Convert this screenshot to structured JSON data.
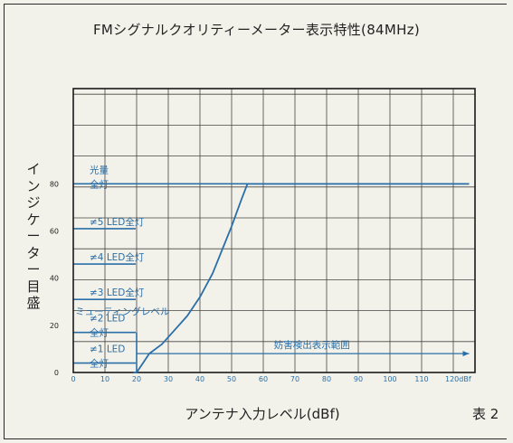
{
  "title": "FMシグナルクオリティーメーター表示特性(84MHz)",
  "table_label": "表 2",
  "colors": {
    "line": "#2a6fa8",
    "grid": "#444444",
    "frame": "#1a1a1a",
    "background": "#f3f2ea"
  },
  "chart_data": {
    "type": "line",
    "title": "FMシグナルクオリティーメーター表示特性(84MHz)",
    "xlabel": "アンテナ入力レベル(dBf)",
    "ylabel": "インジケーター目盛",
    "x_ticks": [
      "0",
      "10",
      "20",
      "30",
      "40",
      "50",
      "60",
      "70",
      "80",
      "90",
      "100",
      "110",
      "120dBf"
    ],
    "y_ticks": [
      "0",
      "20",
      "40",
      "60",
      "80"
    ],
    "xlim": [
      0,
      125
    ],
    "grid": true,
    "series": [
      {
        "x": [
          19,
          20,
          22,
          24,
          28,
          32,
          36,
          40,
          44,
          47,
          50,
          53,
          55,
          125
        ],
        "y": [
          0,
          0,
          4,
          8,
          12,
          18,
          24,
          32,
          42,
          52,
          62,
          73,
          80,
          80
        ]
      }
    ],
    "level_lines": [
      {
        "y": 80,
        "label_lines": [
          "光量",
          "全灯"
        ]
      },
      {
        "y": 61,
        "label_lines": [
          "≠5 LED全灯"
        ]
      },
      {
        "y": 46,
        "label_lines": [
          "≠4 LED全灯"
        ]
      },
      {
        "y": 31,
        "label_lines": [
          "≠3 LED全灯"
        ]
      },
      {
        "y": 17,
        "label_lines": [
          "≠2 LED",
          "全灯"
        ]
      },
      {
        "y": 4,
        "label_lines": [
          "≠1 LED",
          "全灯"
        ]
      }
    ],
    "annotations": [
      {
        "text": "ミューティングレベル"
      },
      {
        "text": "妨害検出表示範囲",
        "x_range": [
          20,
          125
        ]
      }
    ]
  }
}
